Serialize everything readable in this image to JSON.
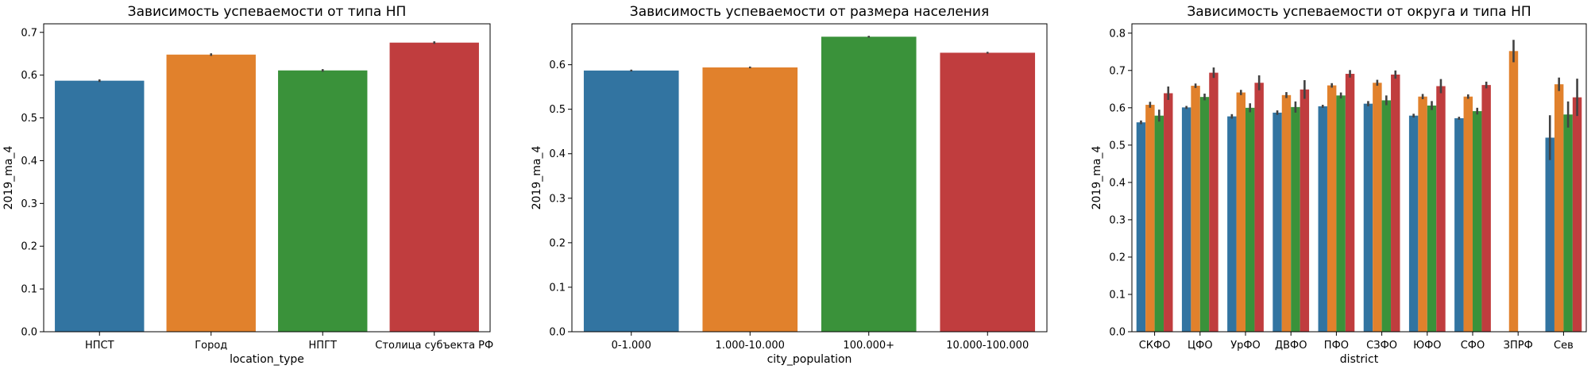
{
  "colors": {
    "blue": "#3274a1",
    "orange": "#e1812c",
    "green": "#3a923a",
    "red": "#c03d3e",
    "errorbar": "#424242"
  },
  "chart_data": [
    {
      "type": "bar",
      "title": "Зависимость успеваемости от типа НП",
      "xlabel": "location_type",
      "ylabel": "2019_ma_4",
      "ylim": [
        0,
        0.72
      ],
      "yticks": [
        "0.0",
        "0.1",
        "0.2",
        "0.3",
        "0.4",
        "0.5",
        "0.6",
        "0.7"
      ],
      "categories": [
        "НПСТ",
        "Город",
        "НПГТ",
        "Столица субъекта РФ"
      ],
      "values": [
        0.587,
        0.648,
        0.611,
        0.676
      ],
      "errors": [
        0.003,
        0.003,
        0.003,
        0.003
      ],
      "grid": false
    },
    {
      "type": "bar",
      "title": "Зависимость успеваемости от размера населения",
      "xlabel": "city_population",
      "ylabel": "2019_ma_4",
      "ylim": [
        0,
        0.692
      ],
      "yticks": [
        "0.0",
        "0.1",
        "0.2",
        "0.3",
        "0.4",
        "0.5",
        "0.6"
      ],
      "categories": [
        "0-1.000",
        "1.000-10.000",
        "100.000+",
        "10.000-100.000"
      ],
      "values": [
        0.587,
        0.594,
        0.663,
        0.627
      ],
      "errors": [
        0.002,
        0.002,
        0.002,
        0.002
      ],
      "grid": false
    },
    {
      "type": "bar",
      "title": "Зависимость успеваемости от округа и типа НП",
      "xlabel": "district",
      "ylabel": "2019_ma_4",
      "ylim": [
        0,
        0.825
      ],
      "yticks": [
        "0.0",
        "0.1",
        "0.2",
        "0.3",
        "0.4",
        "0.5",
        "0.6",
        "0.7",
        "0.8"
      ],
      "categories": [
        "СКФО",
        "ЦФО",
        "УрФО",
        "ДВФО",
        "ПФО",
        "СЗФО",
        "ЮФО",
        "СФО",
        "ЗПРФ",
        "Сев"
      ],
      "series": [
        {
          "values": [
            0.561,
            0.601,
            0.577,
            0.587,
            0.604,
            0.611,
            0.579,
            0.572,
            null,
            0.52
          ],
          "errors": [
            0.005,
            0.004,
            0.006,
            0.006,
            0.004,
            0.007,
            0.005,
            0.004,
            null,
            0.06
          ]
        },
        {
          "values": [
            0.608,
            0.659,
            0.641,
            0.634,
            0.66,
            0.667,
            0.63,
            0.63,
            0.752,
            0.663
          ],
          "errors": [
            0.008,
            0.006,
            0.007,
            0.008,
            0.006,
            0.008,
            0.007,
            0.006,
            0.03,
            0.018
          ]
        },
        {
          "values": [
            0.579,
            0.629,
            0.6,
            0.602,
            0.633,
            0.62,
            0.606,
            0.591,
            null,
            0.582
          ],
          "errors": [
            0.016,
            0.009,
            0.012,
            0.015,
            0.008,
            0.013,
            0.012,
            0.009,
            null,
            0.035
          ]
        },
        {
          "values": [
            0.639,
            0.694,
            0.667,
            0.649,
            0.691,
            0.689,
            0.658,
            0.661,
            null,
            0.628
          ],
          "errors": [
            0.018,
            0.014,
            0.02,
            0.025,
            0.01,
            0.011,
            0.019,
            0.009,
            null,
            0.05
          ]
        }
      ],
      "grid": false
    }
  ]
}
